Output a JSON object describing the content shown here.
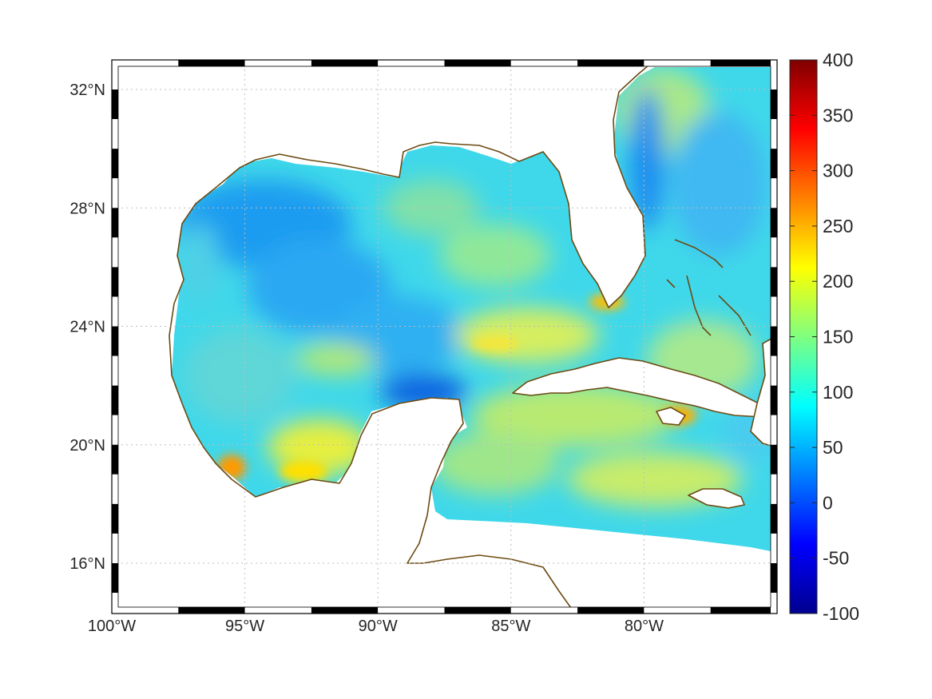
{
  "map": {
    "lon_range": [
      -100,
      -75
    ],
    "lat_range": [
      14.3,
      33
    ],
    "grid": true,
    "lon_ticks": [
      {
        "value": -100,
        "label": "100°W"
      },
      {
        "value": -95,
        "label": "95°W"
      },
      {
        "value": -90,
        "label": "90°W"
      },
      {
        "value": -85,
        "label": "85°W"
      },
      {
        "value": -80,
        "label": "80°W"
      }
    ],
    "lat_ticks": [
      {
        "value": 32,
        "label": "32°N"
      },
      {
        "value": 28,
        "label": "28°N"
      },
      {
        "value": 24,
        "label": "24°N"
      },
      {
        "value": 20,
        "label": "20°N"
      },
      {
        "value": 16,
        "label": "16°N"
      }
    ],
    "land_color": "#ffffff",
    "coastline_color": "#6b4a12",
    "frame_colors": [
      "#000000",
      "#ffffff"
    ]
  },
  "colorbar": {
    "range": [
      -100,
      400
    ],
    "colormap": "jet",
    "ticks": [
      "400",
      "350",
      "300",
      "250",
      "200",
      "150",
      "100",
      "50",
      "0",
      "-50",
      "-100"
    ]
  }
}
